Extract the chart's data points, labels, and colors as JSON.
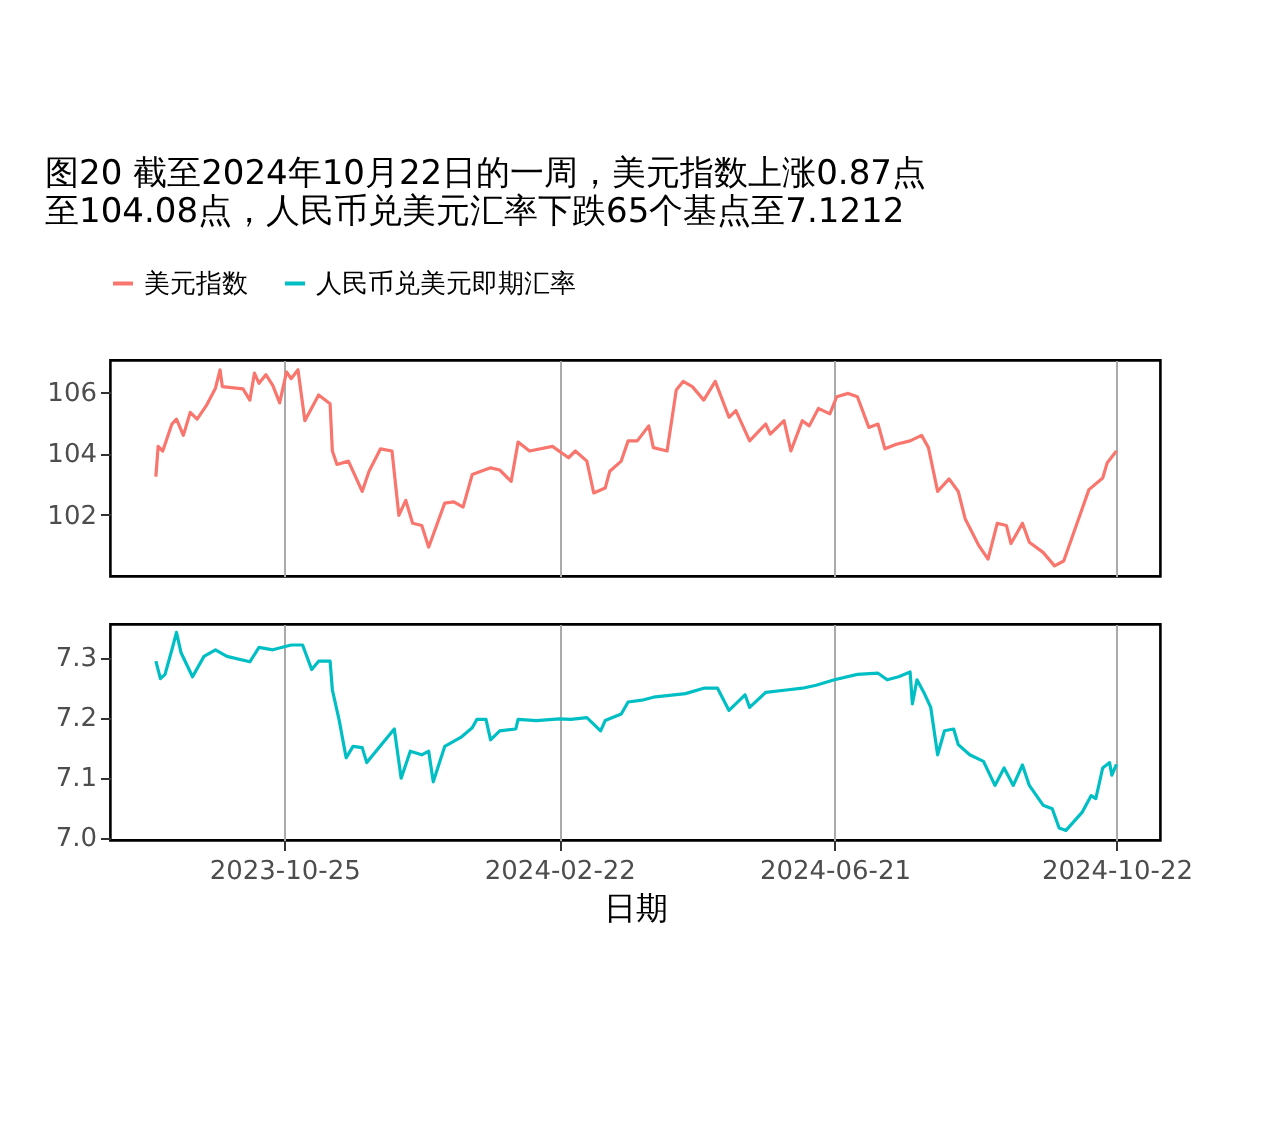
{
  "chart_data": [
    {
      "type": "line",
      "title": "图20  截至2024年10月22日的一周，美元指数上涨0.87点至104.08点，人民币兑美元汇率下跌65个基点至7.1212",
      "legend": "top",
      "grid": "x",
      "tick_labels": "y",
      "xlim": [
        "2023-08-10",
        "2024-11-10"
      ],
      "xticks": [
        "2023-10-25",
        "2024-02-22",
        "2024-06-21",
        "2024-10-22"
      ],
      "ylim": [
        100.0,
        107.05
      ],
      "yticks": [
        102,
        104,
        106
      ],
      "x": [
        "2023-08-30",
        "2023-08-31",
        "2023-09-02",
        "2023-09-06",
        "2023-09-08",
        "2023-09-11",
        "2023-09-14",
        "2023-09-17",
        "2023-09-21",
        "2023-09-25",
        "2023-09-27",
        "2023-09-28",
        "2023-10-07",
        "2023-10-10",
        "2023-10-12",
        "2023-10-14",
        "2023-10-17",
        "2023-10-20",
        "2023-10-23",
        "2023-10-26",
        "2023-10-28",
        "2023-10-31",
        "2023-11-03",
        "2023-11-09",
        "2023-11-14",
        "2023-11-15",
        "2023-11-17",
        "2023-11-22",
        "2023-11-28",
        "2023-12-01",
        "2023-12-06",
        "2023-12-11",
        "2023-12-14",
        "2023-12-17",
        "2023-12-20",
        "2023-12-24",
        "2023-12-27",
        "2024-01-03",
        "2024-01-07",
        "2024-01-11",
        "2024-01-15",
        "2024-01-23",
        "2024-01-27",
        "2024-02-01",
        "2024-02-04",
        "2024-02-09",
        "2024-02-19",
        "2024-02-26",
        "2024-02-29",
        "2024-03-05",
        "2024-03-08",
        "2024-03-13",
        "2024-03-15",
        "2024-03-20",
        "2024-03-23",
        "2024-03-27",
        "2024-04-01",
        "2024-04-03",
        "2024-04-09",
        "2024-04-13",
        "2024-04-16",
        "2024-04-20",
        "2024-04-25",
        "2024-04-30",
        "2024-05-06",
        "2024-05-09",
        "2024-05-15",
        "2024-05-22",
        "2024-05-24",
        "2024-05-30",
        "2024-06-02",
        "2024-06-07",
        "2024-06-10",
        "2024-06-14",
        "2024-06-19",
        "2024-06-22",
        "2024-06-27",
        "2024-07-01",
        "2024-07-06",
        "2024-07-10",
        "2024-07-13",
        "2024-07-18",
        "2024-07-24",
        "2024-07-29",
        "2024-08-01",
        "2024-08-05",
        "2024-08-10",
        "2024-08-14",
        "2024-08-17",
        "2024-08-23",
        "2024-08-27",
        "2024-08-31",
        "2024-09-04",
        "2024-09-06",
        "2024-09-11",
        "2024-09-14",
        "2024-09-20",
        "2024-09-25",
        "2024-09-29",
        "2024-10-10",
        "2024-10-16",
        "2024-10-18",
        "2024-10-22"
      ],
      "series": [
        {
          "name": "美元指数",
          "color": "#f8766d",
          "values": [
            103.24,
            104.23,
            104.08,
            104.96,
            105.12,
            104.59,
            105.34,
            105.12,
            105.56,
            106.13,
            106.73,
            106.18,
            106.11,
            105.74,
            106.62,
            106.29,
            106.57,
            106.22,
            105.65,
            106.66,
            106.44,
            106.73,
            105.07,
            105.91,
            105.62,
            104.08,
            103.64,
            103.75,
            102.76,
            103.42,
            104.15,
            104.08,
            101.98,
            102.47,
            101.72,
            101.65,
            100.94,
            102.38,
            102.42,
            102.25,
            103.31,
            103.53,
            103.46,
            103.09,
            104.37,
            104.08,
            104.23,
            103.86,
            104.08,
            103.75,
            102.71,
            102.87,
            103.42,
            103.75,
            104.41,
            104.41,
            104.9,
            104.19,
            104.08,
            106.07,
            106.35,
            106.18,
            105.74,
            106.35,
            105.18,
            105.4,
            104.41,
            104.96,
            104.63,
            105.07,
            104.08,
            105.07,
            104.9,
            105.47,
            105.29,
            105.85,
            105.96,
            105.85,
            104.85,
            104.96,
            104.15,
            104.3,
            104.41,
            104.59,
            104.19,
            102.76,
            103.17,
            102.76,
            101.87,
            100.99,
            100.55,
            101.72,
            101.65,
            101.06,
            101.72,
            101.1,
            100.77,
            100.33,
            100.49,
            102.82,
            103.2,
            103.7,
            104.08
          ]
        }
      ]
    },
    {
      "type": "line",
      "xlabel": "日期",
      "legend": "top",
      "grid": "x",
      "xlim": [
        "2023-08-10",
        "2024-11-10"
      ],
      "xticks": [
        "2023-10-25",
        "2024-02-22",
        "2024-06-21",
        "2024-10-22"
      ],
      "ylim": [
        6.995,
        7.355
      ],
      "yticks": [
        {
          "value": 7,
          "label": "7.0"
        },
        7.1,
        7.2,
        7.3
      ],
      "x": [
        "2023-08-30",
        "2023-09-01",
        "2023-09-03",
        "2023-09-06",
        "2023-09-08",
        "2023-09-10",
        "2023-09-15",
        "2023-09-20",
        "2023-09-25",
        "2023-09-30",
        "2023-10-10",
        "2023-10-14",
        "2023-10-20",
        "2023-10-28",
        "2023-11-02",
        "2023-11-06",
        "2023-11-09",
        "2023-11-14",
        "2023-11-15",
        "2023-11-18",
        "2023-11-21",
        "2023-11-24",
        "2023-11-28",
        "2023-11-30",
        "2023-12-04",
        "2023-12-12",
        "2023-12-15",
        "2023-12-19",
        "2023-12-24",
        "2023-12-27",
        "2023-12-29",
        "2024-01-03",
        "2024-01-10",
        "2024-01-15",
        "2024-01-17",
        "2024-01-21",
        "2024-01-23",
        "2024-01-27",
        "2024-02-03",
        "2024-02-04",
        "2024-02-12",
        "2024-02-22",
        "2024-02-27",
        "2024-03-05",
        "2024-03-11",
        "2024-03-13",
        "2024-03-20",
        "2024-03-23",
        "2024-03-29",
        "2024-04-03",
        "2024-04-17",
        "2024-04-25",
        "2024-05-01",
        "2024-05-06",
        "2024-05-13",
        "2024-05-15",
        "2024-05-22",
        "2024-05-31",
        "2024-06-07",
        "2024-06-13",
        "2024-06-21",
        "2024-07-01",
        "2024-07-10",
        "2024-07-14",
        "2024-07-19",
        "2024-07-24",
        "2024-07-25",
        "2024-07-27",
        "2024-07-30",
        "2024-08-02",
        "2024-08-05",
        "2024-08-08",
        "2024-08-12",
        "2024-08-14",
        "2024-08-19",
        "2024-08-25",
        "2024-08-30",
        "2024-09-03",
        "2024-09-07",
        "2024-09-11",
        "2024-09-14",
        "2024-09-20",
        "2024-09-24",
        "2024-09-27",
        "2024-09-30",
        "2024-10-07",
        "2024-10-11",
        "2024-10-13",
        "2024-10-16",
        "2024-10-19",
        "2024-10-20",
        "2024-10-22"
      ],
      "series": [
        {
          "name": "人民币兑美元即期汇率",
          "color": "#00bfc4",
          "values": [
            7.293,
            7.264,
            7.271,
            7.312,
            7.341,
            7.307,
            7.267,
            7.301,
            7.312,
            7.301,
            7.292,
            7.316,
            7.312,
            7.32,
            7.32,
            7.279,
            7.293,
            7.293,
            7.245,
            7.194,
            7.132,
            7.151,
            7.149,
            7.124,
            7.143,
            7.18,
            7.098,
            7.143,
            7.137,
            7.143,
            7.092,
            7.151,
            7.166,
            7.182,
            7.196,
            7.196,
            7.162,
            7.177,
            7.18,
            7.196,
            7.194,
            7.197,
            7.196,
            7.199,
            7.177,
            7.194,
            7.205,
            7.225,
            7.228,
            7.233,
            7.239,
            7.248,
            7.248,
            7.211,
            7.237,
            7.216,
            7.241,
            7.245,
            7.248,
            7.253,
            7.262,
            7.271,
            7.273,
            7.262,
            7.267,
            7.275,
            7.222,
            7.262,
            7.241,
            7.216,
            7.137,
            7.177,
            7.18,
            7.154,
            7.137,
            7.126,
            7.086,
            7.115,
            7.086,
            7.12,
            7.086,
            7.053,
            7.047,
            7.015,
            7.011,
            7.041,
            7.069,
            7.064,
            7.115,
            7.124,
            7.103,
            7.121
          ]
        }
      ]
    }
  ]
}
